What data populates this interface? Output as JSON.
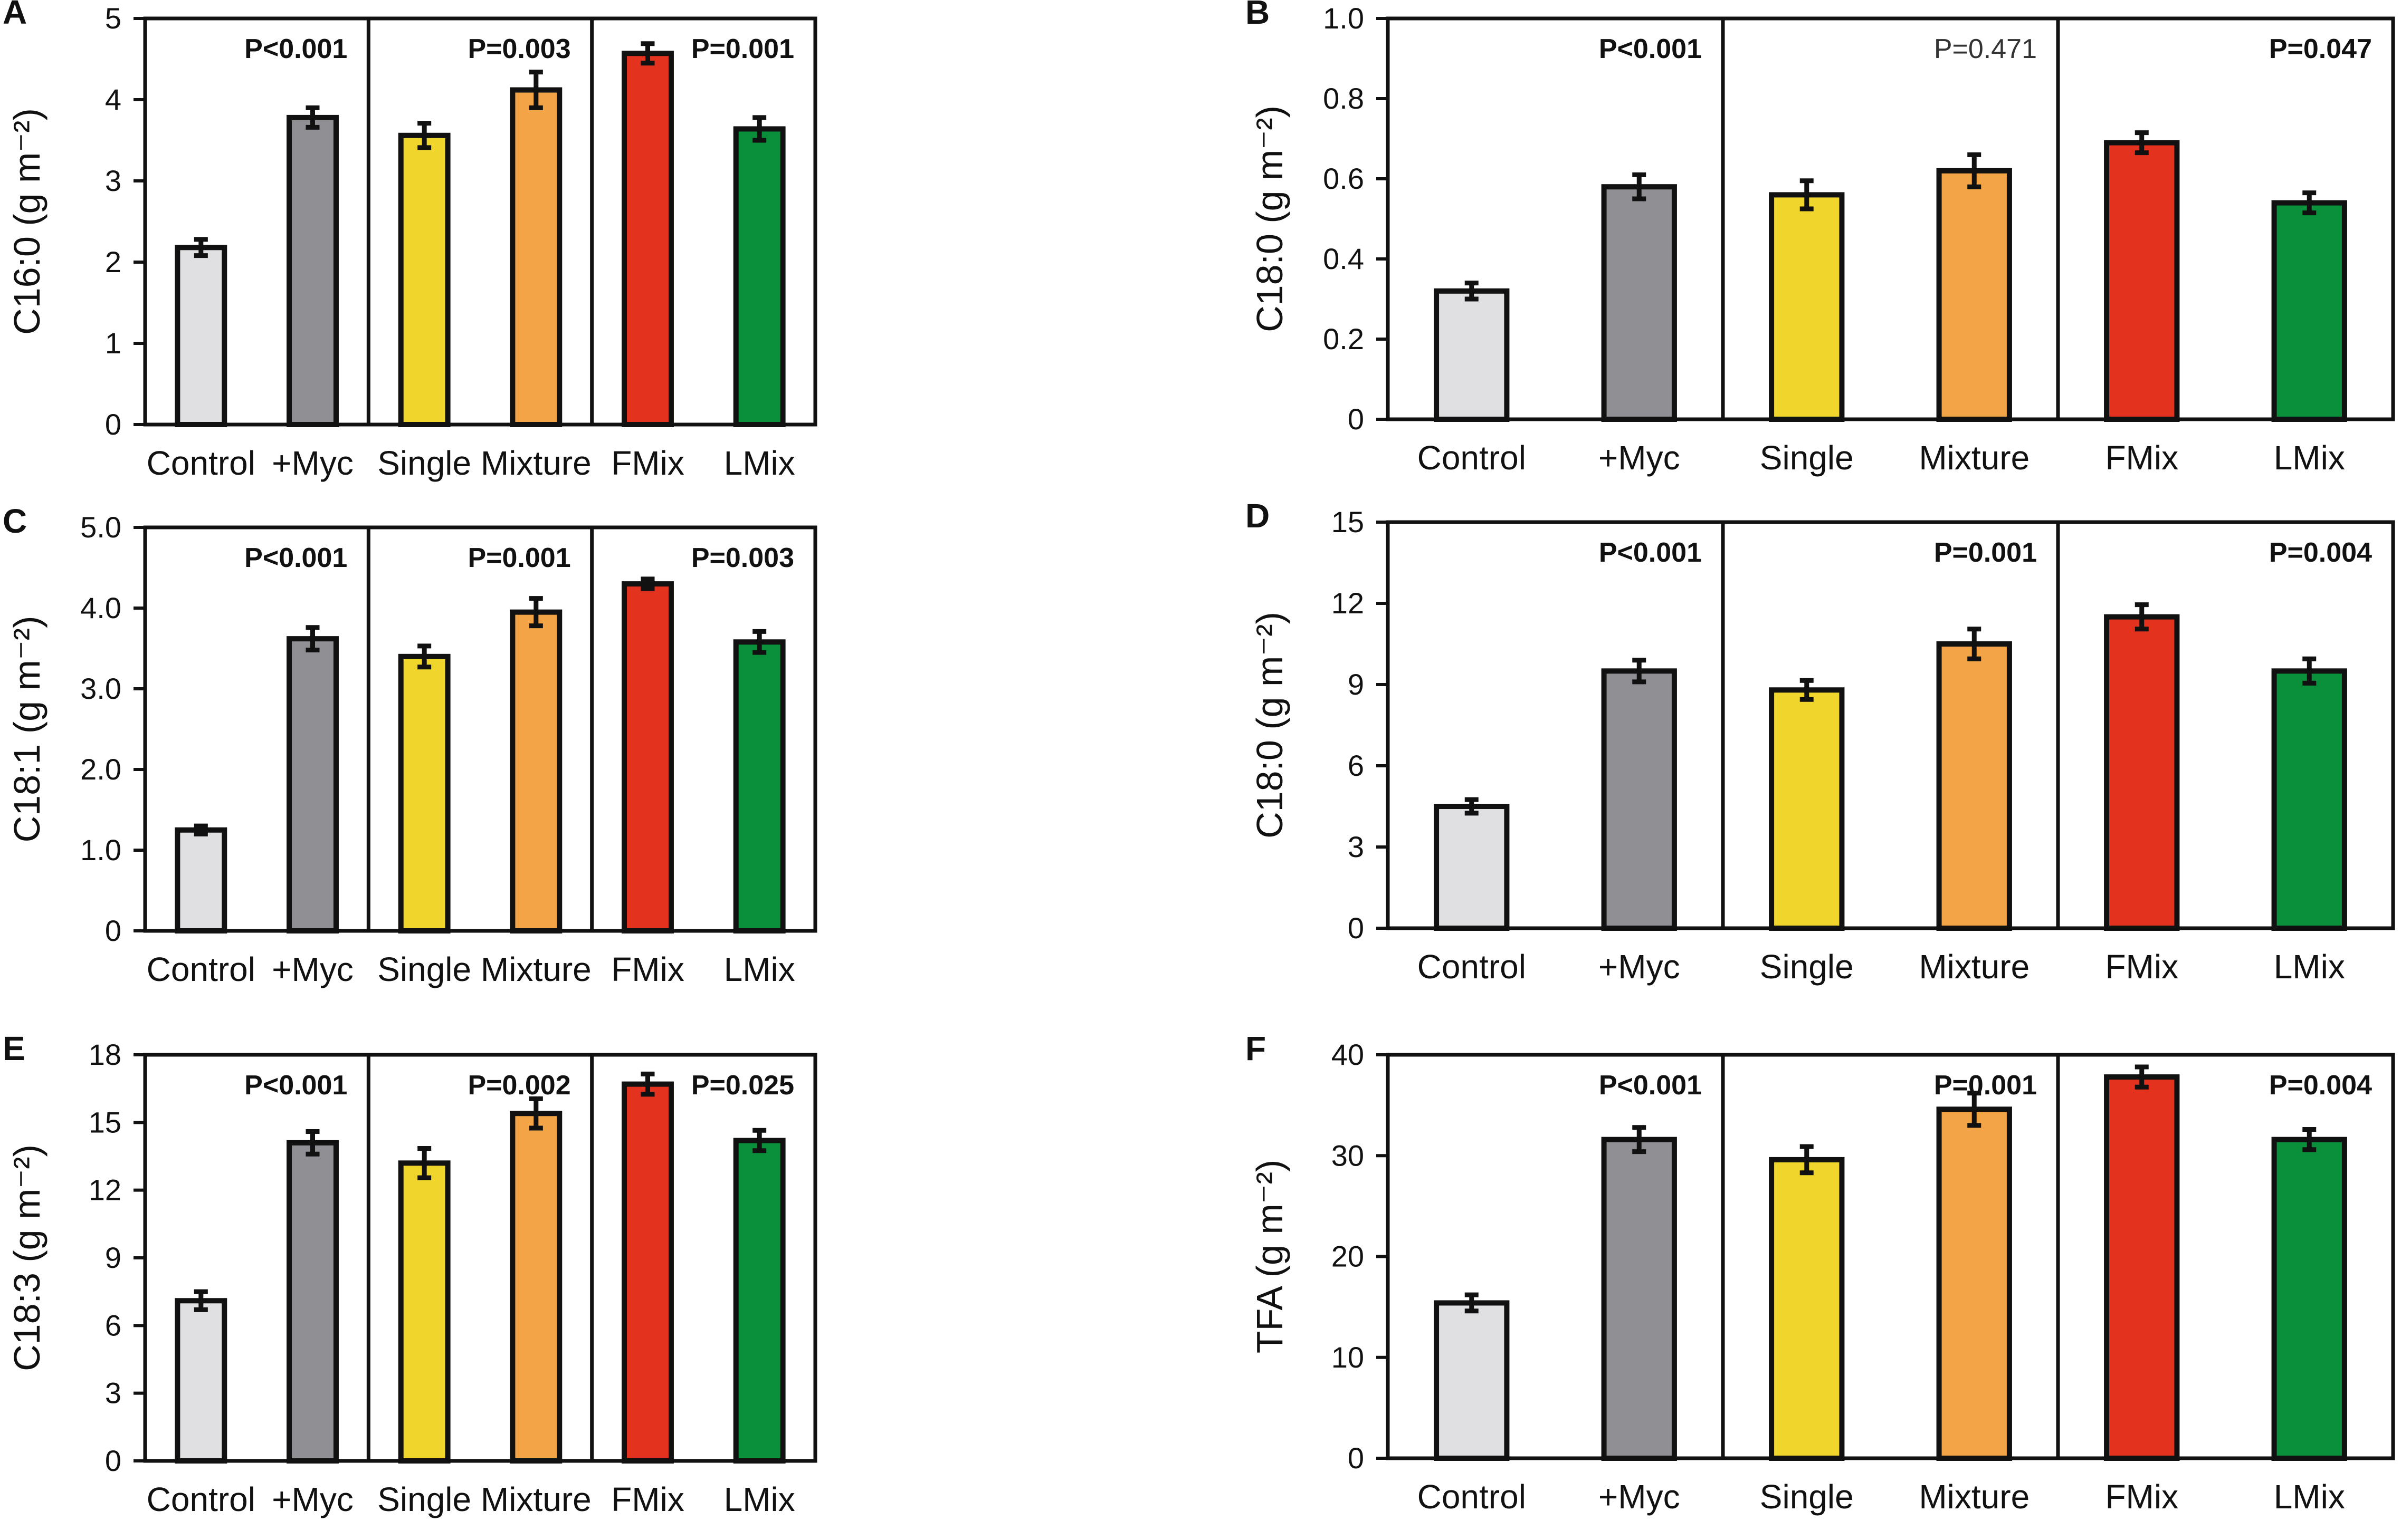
{
  "figure": {
    "colors": {
      "Control": "#e0e0e2",
      "+Myc": "#8f8f94",
      "Single": "#f0d52c",
      "Mixture": "#f2a446",
      "FMix": "#e3331f",
      "LMix": "#0a8f3a",
      "axis": "#111111"
    }
  },
  "chart_data": [
    {
      "panel": "A",
      "type": "bar",
      "ylabel": "C16:0 (g m⁻²)",
      "ylim": [
        0,
        5
      ],
      "yticks": [
        0,
        1,
        2,
        3,
        4,
        5
      ],
      "ytick_labels": [
        "0",
        "1",
        "2",
        "3",
        "4",
        "5"
      ],
      "categories": [
        "Control",
        "+Myc",
        "Single",
        "Mixture",
        "FMix",
        "LMix"
      ],
      "values": [
        2.18,
        3.78,
        3.56,
        4.12,
        4.57,
        3.64
      ],
      "errors": [
        0.1,
        0.12,
        0.15,
        0.22,
        0.12,
        0.14
      ],
      "pvalues": [
        {
          "text": "P<0.001",
          "bold": true
        },
        {
          "text": "P=0.003",
          "bold": true
        },
        {
          "text": "P=0.001",
          "bold": true
        }
      ]
    },
    {
      "panel": "B",
      "type": "bar",
      "ylabel": "C18:0 (g m⁻²)",
      "ylim": [
        0,
        1.0
      ],
      "yticks": [
        0,
        0.2,
        0.4,
        0.6,
        0.8,
        1.0
      ],
      "ytick_labels": [
        "0",
        "0.2",
        "0.4",
        "0.6",
        "0.8",
        "1.0"
      ],
      "categories": [
        "Control",
        "+Myc",
        "Single",
        "Mixture",
        "FMix",
        "LMix"
      ],
      "values": [
        0.32,
        0.58,
        0.56,
        0.62,
        0.69,
        0.54
      ],
      "errors": [
        0.02,
        0.03,
        0.035,
        0.04,
        0.025,
        0.025
      ],
      "pvalues": [
        {
          "text": "P<0.001",
          "bold": true
        },
        {
          "text": "P=0.471",
          "bold": false
        },
        {
          "text": "P=0.047",
          "bold": true
        }
      ]
    },
    {
      "panel": "C",
      "type": "bar",
      "ylabel": "C18:1 (g m⁻²)",
      "ylim": [
        0,
        5.0
      ],
      "yticks": [
        0,
        1.0,
        2.0,
        3.0,
        4.0,
        5.0
      ],
      "ytick_labels": [
        "0",
        "1.0",
        "2.0",
        "3.0",
        "4.0",
        "5.0"
      ],
      "categories": [
        "Control",
        "+Myc",
        "Single",
        "Mixture",
        "FMix",
        "LMix"
      ],
      "values": [
        1.25,
        3.62,
        3.4,
        3.95,
        4.3,
        3.58
      ],
      "errors": [
        0.05,
        0.14,
        0.13,
        0.17,
        0.06,
        0.13
      ],
      "pvalues": [
        {
          "text": "P<0.001",
          "bold": true
        },
        {
          "text": "P=0.001",
          "bold": true
        },
        {
          "text": "P=0.003",
          "bold": true
        }
      ]
    },
    {
      "panel": "D",
      "type": "bar",
      "ylabel": "C18:0 (g m⁻²)",
      "ylim": [
        0,
        15
      ],
      "yticks": [
        0,
        3,
        6,
        9,
        12,
        15
      ],
      "ytick_labels": [
        "0",
        "3",
        "6",
        "9",
        "12",
        "15"
      ],
      "categories": [
        "Control",
        "+Myc",
        "Single",
        "Mixture",
        "FMix",
        "LMix"
      ],
      "values": [
        4.5,
        9.5,
        8.8,
        10.5,
        11.5,
        9.5
      ],
      "errors": [
        0.25,
        0.4,
        0.35,
        0.55,
        0.45,
        0.45
      ],
      "pvalues": [
        {
          "text": "P<0.001",
          "bold": true
        },
        {
          "text": "P=0.001",
          "bold": true
        },
        {
          "text": "P=0.004",
          "bold": true
        }
      ]
    },
    {
      "panel": "E",
      "type": "bar",
      "ylabel": "C18:3 (g m⁻²)",
      "ylim": [
        0,
        18
      ],
      "yticks": [
        0,
        3,
        6,
        9,
        12,
        15,
        18
      ],
      "ytick_labels": [
        "0",
        "3",
        "6",
        "9",
        "12",
        "15",
        "18"
      ],
      "categories": [
        "Control",
        "+Myc",
        "Single",
        "Mixture",
        "FMix",
        "LMix"
      ],
      "values": [
        7.1,
        14.1,
        13.2,
        15.4,
        16.7,
        14.2
      ],
      "errors": [
        0.4,
        0.5,
        0.65,
        0.65,
        0.45,
        0.45
      ],
      "pvalues": [
        {
          "text": "P<0.001",
          "bold": true
        },
        {
          "text": "P=0.002",
          "bold": true
        },
        {
          "text": "P=0.025",
          "bold": true
        }
      ]
    },
    {
      "panel": "F",
      "type": "bar",
      "ylabel": "TFA (g m⁻²)",
      "ylim": [
        0,
        40
      ],
      "yticks": [
        0,
        10,
        20,
        30,
        40
      ],
      "ytick_labels": [
        "0",
        "10",
        "20",
        "30",
        "40"
      ],
      "categories": [
        "Control",
        "+Myc",
        "Single",
        "Mixture",
        "FMix",
        "LMix"
      ],
      "values": [
        15.4,
        31.6,
        29.6,
        34.6,
        37.8,
        31.6
      ],
      "errors": [
        0.8,
        1.2,
        1.3,
        1.6,
        1.0,
        1.0
      ],
      "pvalues": [
        {
          "text": "P<0.001",
          "bold": true
        },
        {
          "text": "P=0.001",
          "bold": true
        },
        {
          "text": "P=0.004",
          "bold": true
        }
      ]
    }
  ]
}
